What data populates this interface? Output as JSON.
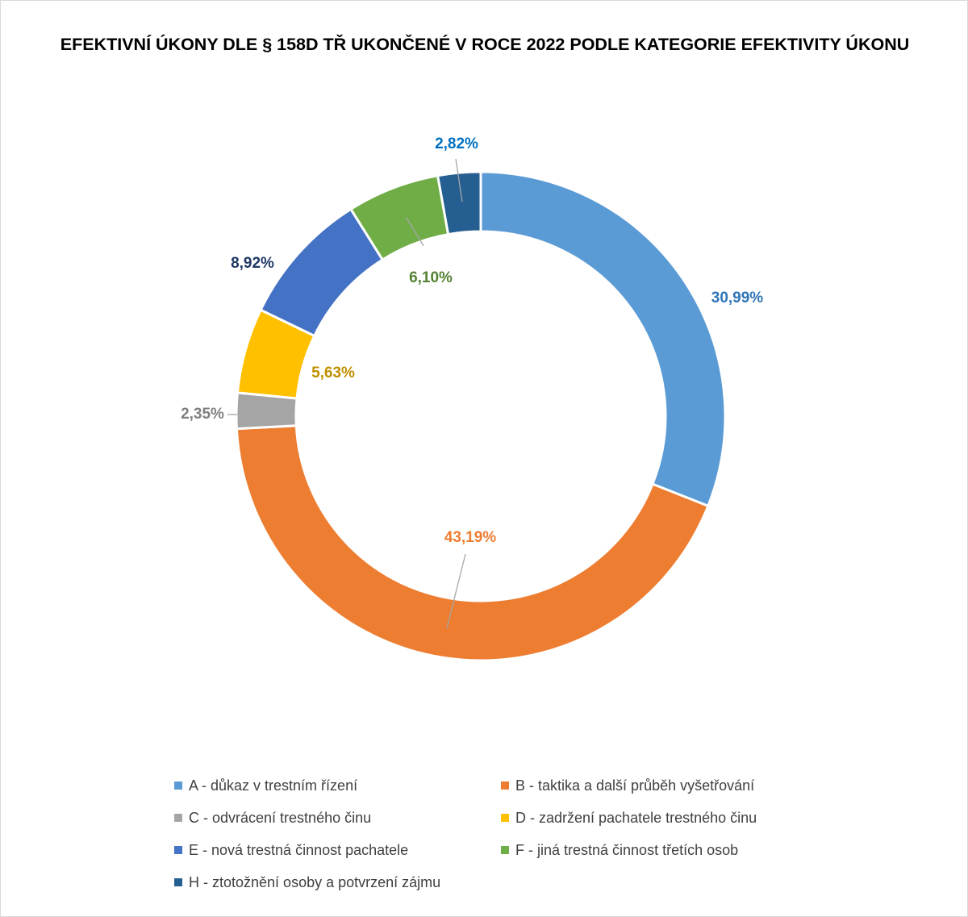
{
  "chart_data": {
    "type": "pie",
    "variant": "doughnut",
    "title": "EFEKTIVNÍ ÚKONY DLE § 158D TŘ UKONČENÉ V ROCE 2022 PODLE KATEGORIE EFEKTIVITY ÚKONU",
    "legend_position": "bottom",
    "slices": [
      {
        "category": "A - důkaz v trestním řízení",
        "value": 30.99,
        "label": "30,99%",
        "color": "#5b9bd5",
        "label_color": "#2e75b6"
      },
      {
        "category": "B - taktika a další průběh vyšetřování",
        "value": 43.19,
        "label": "43,19%",
        "color": "#ed7d31",
        "label_color": "#ed7d31"
      },
      {
        "category": "C - odvrácení trestného činu",
        "value": 2.35,
        "label": "2,35%",
        "color": "#a5a5a5",
        "label_color": "#7f7f7f"
      },
      {
        "category": "D - zadržení pachatele trestného činu",
        "value": 5.63,
        "label": "5,63%",
        "color": "#ffc000",
        "label_color": "#bf9000"
      },
      {
        "category": "E - nová trestná činnost pachatele",
        "value": 8.92,
        "label": "8,92%",
        "color": "#4472c4",
        "label_color": "#203864"
      },
      {
        "category": "F - jiná trestná činnost třetích osob",
        "value": 6.1,
        "label": "6,10%",
        "color": "#70ad47",
        "label_color": "#548235"
      },
      {
        "category": "H - ztotožnění osoby a potvrzení zájmu",
        "value": 2.82,
        "label": "2,82%",
        "color": "#255e91",
        "label_color": "#0070c0"
      }
    ]
  }
}
